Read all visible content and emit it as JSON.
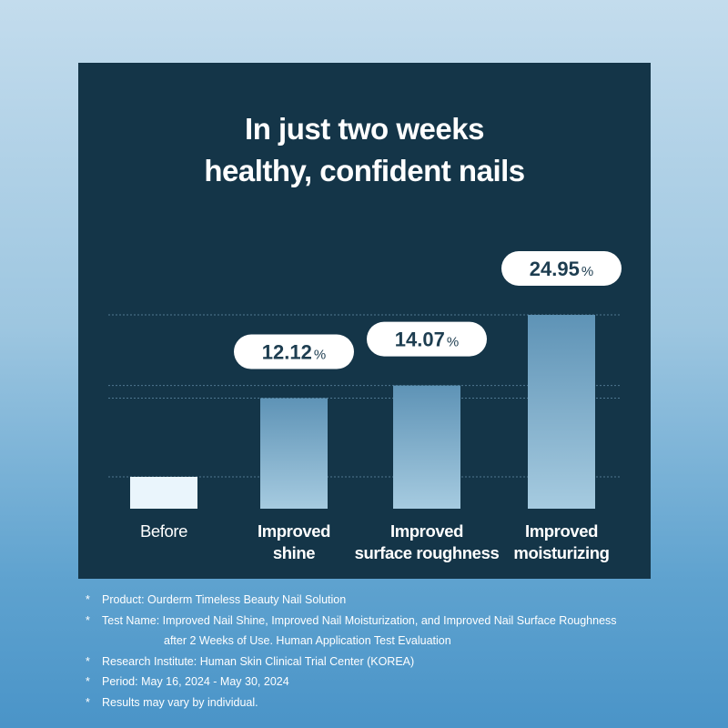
{
  "title": {
    "line1": "In just two weeks",
    "line2": "healthy, confident nails"
  },
  "colors": {
    "panel": "#143548",
    "bar_top": "#5e93b6",
    "bar_bottom": "#a6cbe0",
    "before_bar": "#eaf5fc",
    "gridline": "#4f7790",
    "pill_bg": "#ffffff",
    "pill_text": "#1d3d50"
  },
  "chart_data": {
    "type": "bar",
    "categories": [
      "Before",
      "Improved shine",
      "Improved surface roughness",
      "Improved moisturizing"
    ],
    "category_lines": [
      [
        "Before"
      ],
      [
        "Improved",
        "shine"
      ],
      [
        "Improved",
        "surface roughness"
      ],
      [
        "Improved",
        "moisturizing"
      ]
    ],
    "values": [
      0,
      12.12,
      14.07,
      24.95
    ],
    "value_labels": [
      "",
      "12.12",
      "14.07",
      "24.95"
    ],
    "unit": "%",
    "ylim": [
      0,
      24.95
    ],
    "gridlines": true,
    "title": "In just two weeks healthy, confident nails"
  },
  "footnotes": [
    {
      "star": "*",
      "lines": [
        "Product: Ourderm Timeless Beauty Nail Solution"
      ]
    },
    {
      "star": "*",
      "lines": [
        "Test Name: Improved Nail Shine, Improved Nail Moisturization, and Improved Nail Surface Roughness",
        "after 2 Weeks of Use. Human Application Test Evaluation"
      ]
    },
    {
      "star": "*",
      "lines": [
        "Research Institute: Human Skin Clinical Trial Center (KOREA)"
      ]
    },
    {
      "star": "*",
      "lines": [
        "Period: May 16, 2024 - May 30, 2024"
      ]
    },
    {
      "star": "*",
      "lines": [
        "Results may vary by individual."
      ]
    }
  ]
}
